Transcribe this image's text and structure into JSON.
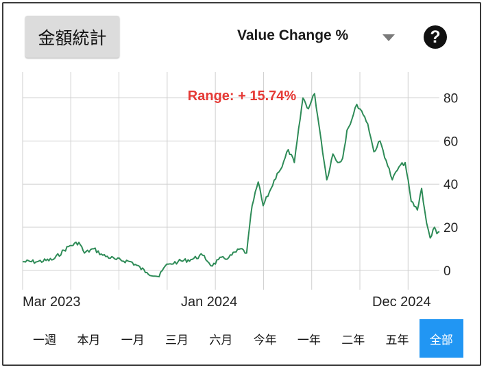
{
  "header": {
    "stats_button": "金額統計",
    "metric_label": "Value Change %",
    "help_symbol": "?"
  },
  "range_buttons": [
    "一週",
    "本月",
    "一月",
    "三月",
    "六月",
    "今年",
    "一年",
    "二年",
    "五年",
    "全部"
  ],
  "active_range": "全部",
  "colors": {
    "line": "#2e8b57",
    "range_text": "#e53935",
    "active": "#2196f3"
  },
  "chart_data": {
    "type": "line",
    "annotation": "Range: + 15.74%",
    "x_tick_labels": [
      "Mar 2023",
      "Jan 2024",
      "Dec 2024"
    ],
    "x_range": [
      "2023-03-01",
      "2025-01-10"
    ],
    "y_tick_labels": [
      "0",
      "20",
      "40",
      "60",
      "80"
    ],
    "ylim": [
      -9,
      92
    ],
    "grid": true,
    "series": [
      {
        "x": [
          "2023-03-01",
          "2023-03-25",
          "2023-04-20",
          "2023-05-15",
          "2023-06-01",
          "2023-06-10",
          "2023-06-25",
          "2023-07-10",
          "2023-08-01",
          "2023-08-25",
          "2023-09-20",
          "2023-10-10",
          "2023-10-20",
          "2023-10-28",
          "2023-11-10",
          "2023-12-01",
          "2023-12-20",
          "2024-01-05",
          "2024-01-15",
          "2024-02-01",
          "2024-02-20",
          "2024-03-01",
          "2024-03-10",
          "2024-03-20",
          "2024-03-28",
          "2024-04-10",
          "2024-04-20",
          "2024-04-28",
          "2024-05-08",
          "2024-05-18",
          "2024-06-01",
          "2024-06-10",
          "2024-06-20",
          "2024-07-01",
          "2024-07-10",
          "2024-07-20",
          "2024-07-28",
          "2024-08-05",
          "2024-08-12",
          "2024-08-20",
          "2024-08-28",
          "2024-09-05",
          "2024-09-15",
          "2024-09-25",
          "2024-10-05",
          "2024-10-15",
          "2024-10-25",
          "2024-11-05",
          "2024-11-15",
          "2024-11-25",
          "2024-12-05",
          "2024-12-12",
          "2024-12-20",
          "2024-12-26",
          "2025-01-02",
          "2025-01-06",
          "2025-01-10"
        ],
        "values": [
          4,
          4,
          5,
          11,
          13,
          8,
          10,
          7,
          5,
          4,
          -1,
          -3,
          2,
          3,
          4,
          5,
          7,
          2,
          5,
          6,
          10,
          8,
          30,
          41,
          30,
          38,
          45,
          48,
          56,
          50,
          80,
          75,
          82,
          60,
          42,
          54,
          50,
          52,
          65,
          70,
          77,
          74,
          68,
          55,
          60,
          51,
          42,
          48,
          50,
          32,
          28,
          38,
          22,
          15,
          20,
          17,
          18
        ]
      }
    ]
  }
}
